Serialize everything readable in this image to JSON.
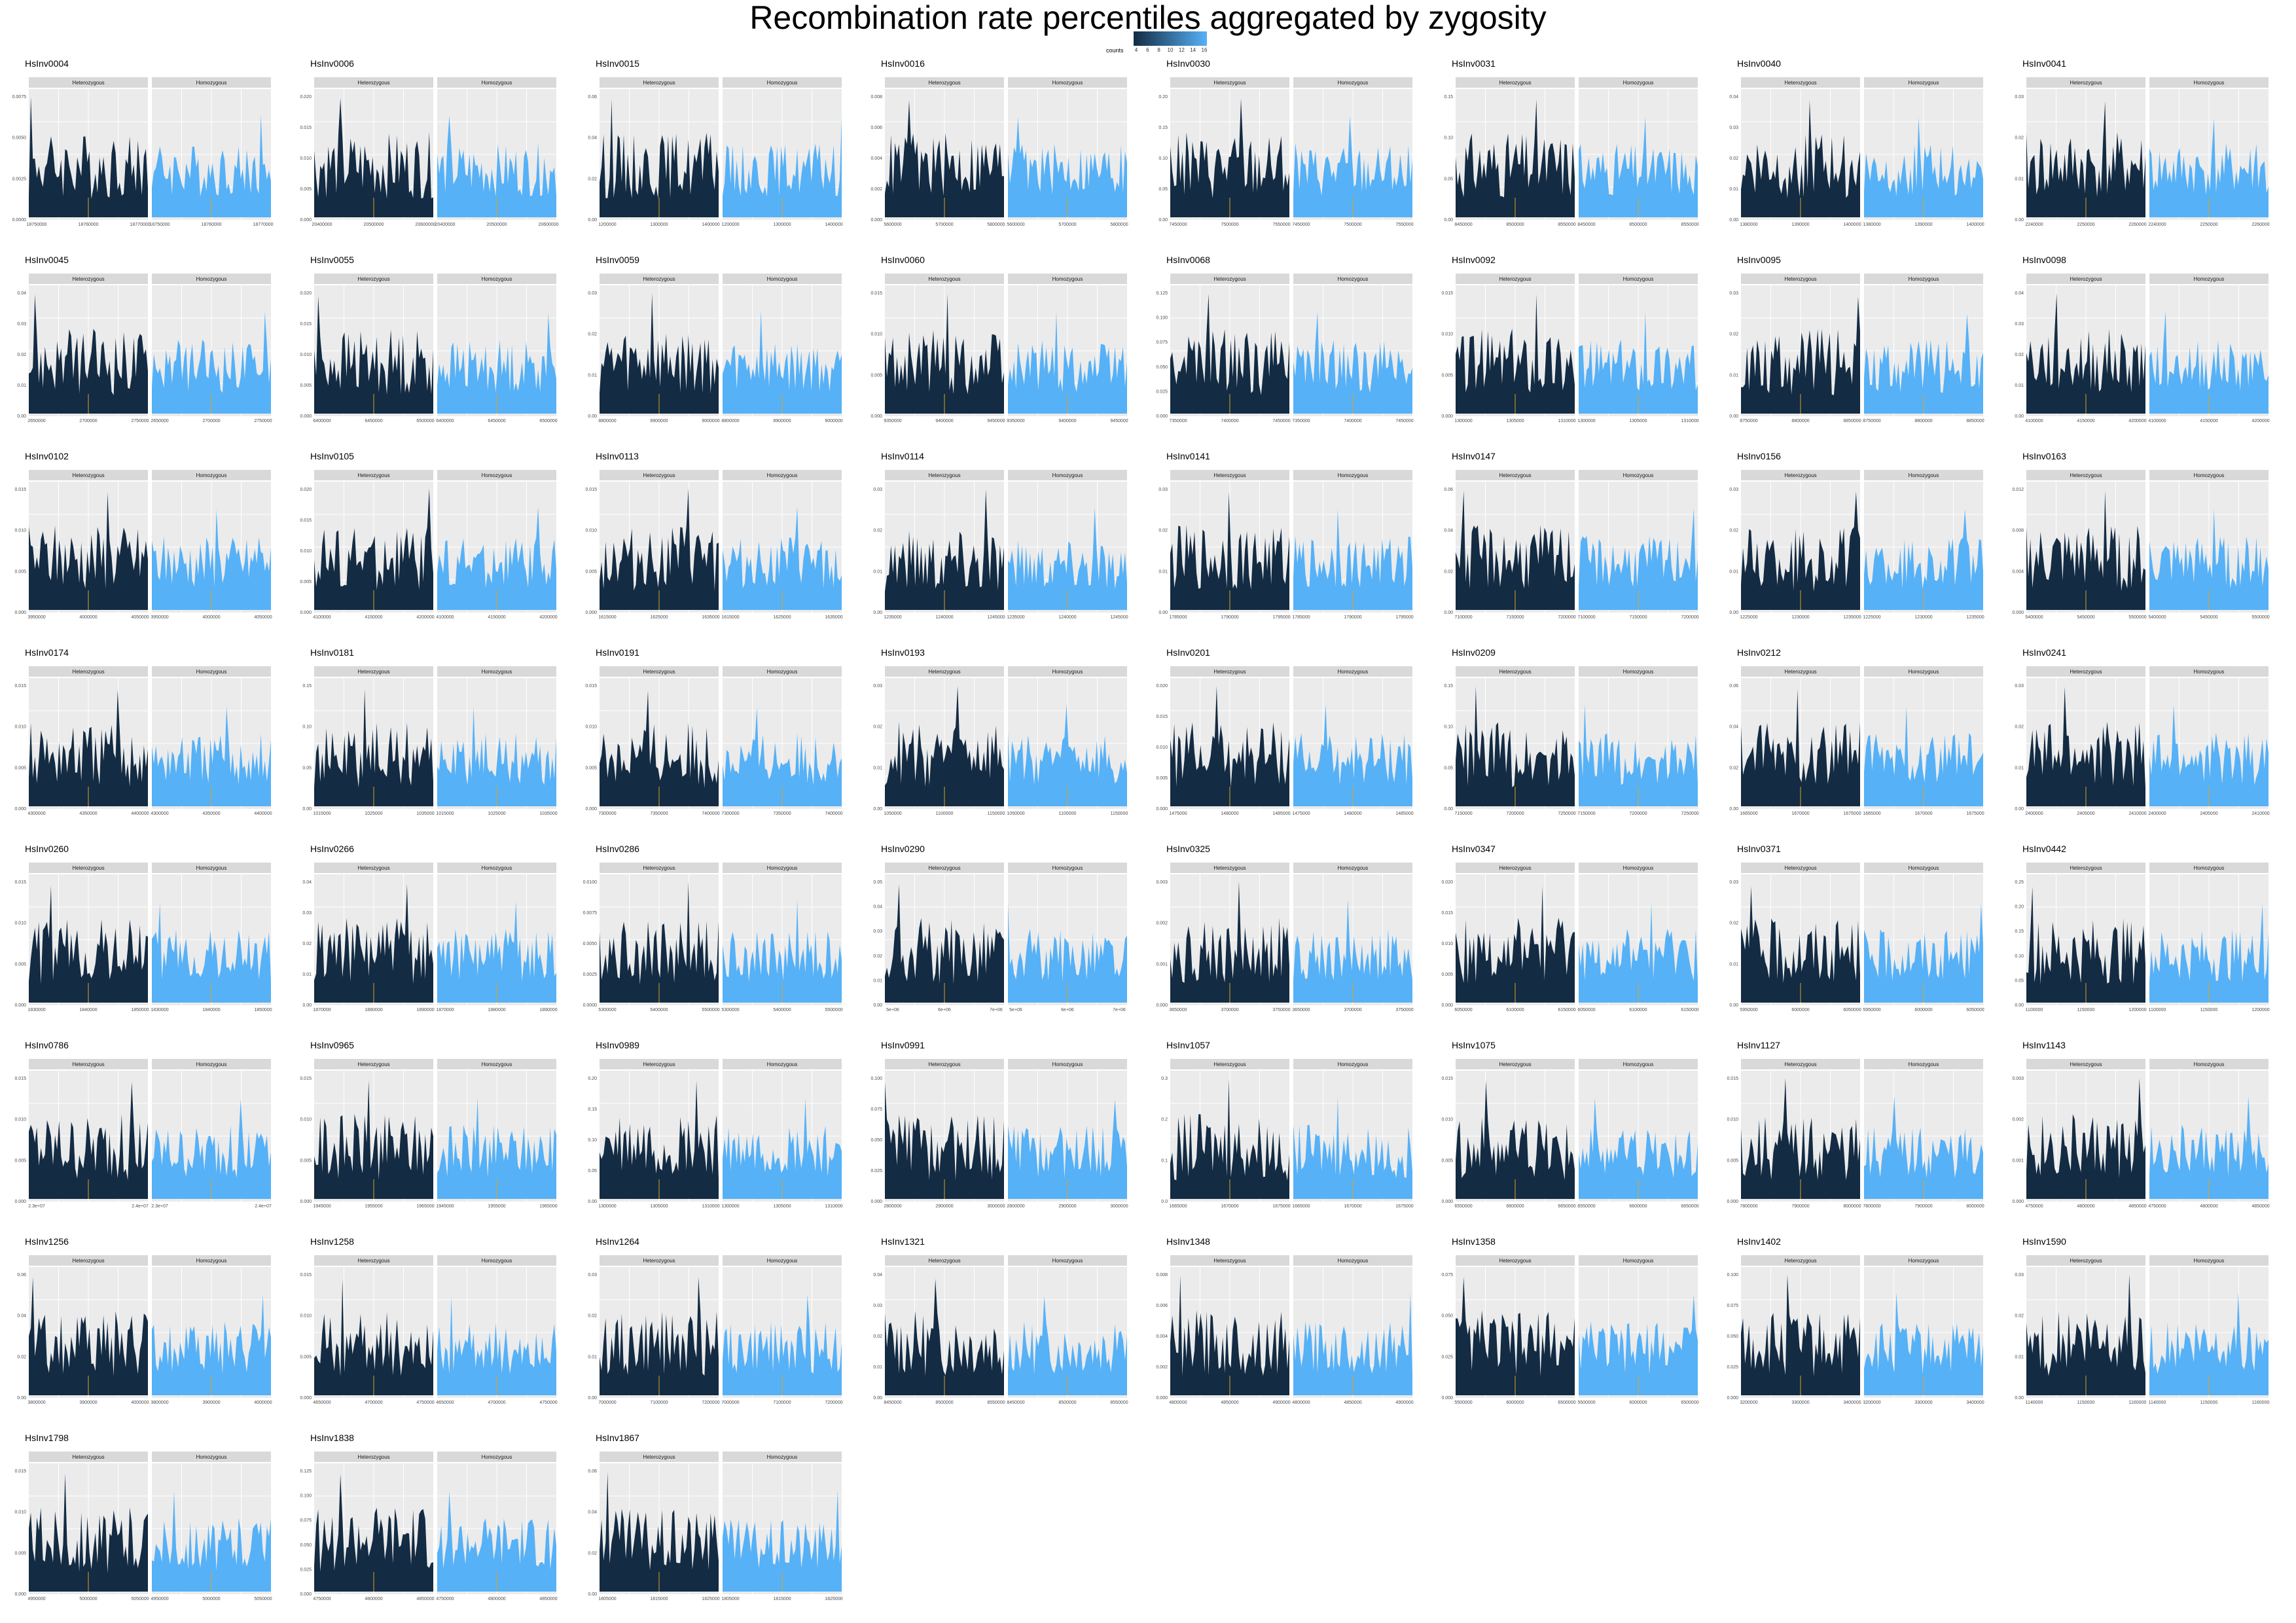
{
  "title": "Recombination rate percentiles aggregated by zygosity",
  "legend": {
    "title": "counts",
    "ticks": [
      "4",
      "6",
      "8",
      "10",
      "12",
      "14",
      "16"
    ],
    "low_color": "#132B43",
    "high_color": "#56B1F7",
    "position": "top-center"
  },
  "colors": {
    "heterozygous_fill": "#132B43",
    "homozygous_fill": "#56B1F7",
    "highlight": "#DAA520",
    "panel_bg": "#EBEBEB",
    "strip_bg": "#D9D9D9"
  },
  "chart_data": {
    "type": "area",
    "facets": [
      "Heterozygous",
      "Homozygous"
    ],
    "panels": [
      {
        "name": "HsInv0004",
        "yticks": [
          "0.0000",
          "0.0025",
          "0.0050",
          "0.0075"
        ],
        "xticks": [
          "18750000",
          "18760000",
          "18770000"
        ],
        "seed": 4
      },
      {
        "name": "HsInv0006",
        "yticks": [
          "0.000",
          "0.005",
          "0.010",
          "0.015",
          "0.020"
        ],
        "xticks": [
          "20400000",
          "20500000",
          "20600000"
        ],
        "seed": 6
      },
      {
        "name": "HsInv0015",
        "yticks": [
          "0.00",
          "0.02",
          "0.04",
          "0.06"
        ],
        "xticks": [
          "1200000",
          "1300000",
          "1400000"
        ],
        "seed": 15
      },
      {
        "name": "HsInv0016",
        "yticks": [
          "0.000",
          "0.002",
          "0.004",
          "0.006",
          "0.008"
        ],
        "xticks": [
          "5600000",
          "5700000",
          "5800000"
        ],
        "seed": 16
      },
      {
        "name": "HsInv0030",
        "yticks": [
          "0.00",
          "0.05",
          "0.10",
          "0.15",
          "0.20"
        ],
        "xticks": [
          "7450000",
          "7500000",
          "7550000"
        ],
        "seed": 30
      },
      {
        "name": "HsInv0031",
        "yticks": [
          "0.00",
          "0.05",
          "0.10",
          "0.15"
        ],
        "xticks": [
          "8450000",
          "8500000",
          "8550000"
        ],
        "seed": 31
      },
      {
        "name": "HsInv0040",
        "yticks": [
          "0.00",
          "0.01",
          "0.02",
          "0.03",
          "0.04"
        ],
        "xticks": [
          "1380000",
          "1390000",
          "1400000"
        ],
        "seed": 40
      },
      {
        "name": "HsInv0041",
        "yticks": [
          "0.00",
          "0.01",
          "0.02",
          "0.03"
        ],
        "xticks": [
          "2240000",
          "2250000",
          "2260000"
        ],
        "seed": 41
      },
      {
        "name": "HsInv0045",
        "yticks": [
          "0.00",
          "0.01",
          "0.02",
          "0.03",
          "0.04"
        ],
        "xticks": [
          "2650000",
          "2700000",
          "2750000"
        ],
        "seed": 45
      },
      {
        "name": "HsInv0055",
        "yticks": [
          "0.000",
          "0.005",
          "0.010",
          "0.015",
          "0.020"
        ],
        "xticks": [
          "6400000",
          "6450000",
          "6500000"
        ],
        "seed": 55
      },
      {
        "name": "HsInv0059",
        "yticks": [
          "0.00",
          "0.01",
          "0.02",
          "0.03"
        ],
        "xticks": [
          "8800000",
          "8900000",
          "9000000"
        ],
        "seed": 59
      },
      {
        "name": "HsInv0060",
        "yticks": [
          "0.000",
          "0.005",
          "0.010",
          "0.015"
        ],
        "xticks": [
          "9350000",
          "9400000",
          "9450000"
        ],
        "seed": 60
      },
      {
        "name": "HsInv0068",
        "yticks": [
          "0.000",
          "0.025",
          "0.050",
          "0.075",
          "0.100",
          "0.125"
        ],
        "xticks": [
          "7350000",
          "7400000",
          "7450000"
        ],
        "seed": 68
      },
      {
        "name": "HsInv0092",
        "yticks": [
          "0.000",
          "0.005",
          "0.010",
          "0.015"
        ],
        "xticks": [
          "1300000",
          "1305000",
          "1310000"
        ],
        "seed": 92
      },
      {
        "name": "HsInv0095",
        "yticks": [
          "0.00",
          "0.01",
          "0.02",
          "0.03"
        ],
        "xticks": [
          "8750000",
          "8800000",
          "8850000"
        ],
        "seed": 95
      },
      {
        "name": "HsInv0098",
        "yticks": [
          "0.00",
          "0.01",
          "0.02",
          "0.03",
          "0.04"
        ],
        "xticks": [
          "4100000",
          "4150000",
          "4200000"
        ],
        "seed": 98
      },
      {
        "name": "HsInv0102",
        "yticks": [
          "0.000",
          "0.005",
          "0.010",
          "0.015"
        ],
        "xticks": [
          "3950000",
          "4000000",
          "4050000"
        ],
        "seed": 102
      },
      {
        "name": "HsInv0105",
        "yticks": [
          "0.000",
          "0.005",
          "0.010",
          "0.015",
          "0.020"
        ],
        "xticks": [
          "4100000",
          "4150000",
          "4200000"
        ],
        "seed": 105
      },
      {
        "name": "HsInv0113",
        "yticks": [
          "0.000",
          "0.005",
          "0.010",
          "0.015"
        ],
        "xticks": [
          "1615000",
          "1625000",
          "1635000"
        ],
        "seed": 113
      },
      {
        "name": "HsInv0114",
        "yticks": [
          "0.00",
          "0.01",
          "0.02",
          "0.03"
        ],
        "xticks": [
          "1235000",
          "1240000",
          "1245000"
        ],
        "seed": 114
      },
      {
        "name": "HsInv0141",
        "yticks": [
          "0.00",
          "0.01",
          "0.02",
          "0.03"
        ],
        "xticks": [
          "1785000",
          "1790000",
          "1795000"
        ],
        "seed": 141
      },
      {
        "name": "HsInv0147",
        "yticks": [
          "0.00",
          "0.02",
          "0.04",
          "0.06"
        ],
        "xticks": [
          "7100000",
          "7150000",
          "7200000"
        ],
        "seed": 147
      },
      {
        "name": "HsInv0156",
        "yticks": [
          "0.00",
          "0.01",
          "0.02",
          "0.03"
        ],
        "xticks": [
          "1225000",
          "1230000",
          "1235000"
        ],
        "seed": 156
      },
      {
        "name": "HsInv0163",
        "yticks": [
          "0.000",
          "0.004",
          "0.008",
          "0.012"
        ],
        "xticks": [
          "5400000",
          "5450000",
          "5500000"
        ],
        "seed": 163
      },
      {
        "name": "HsInv0174",
        "yticks": [
          "0.000",
          "0.005",
          "0.010",
          "0.015"
        ],
        "xticks": [
          "4300000",
          "4350000",
          "4400000"
        ],
        "seed": 174
      },
      {
        "name": "HsInv0181",
        "yticks": [
          "0.00",
          "0.05",
          "0.10",
          "0.15"
        ],
        "xticks": [
          "1015000",
          "1025000",
          "1035000"
        ],
        "seed": 181
      },
      {
        "name": "HsInv0191",
        "yticks": [
          "0.000",
          "0.005",
          "0.010",
          "0.015"
        ],
        "xticks": [
          "7300000",
          "7350000",
          "7400000"
        ],
        "seed": 191
      },
      {
        "name": "HsInv0193",
        "yticks": [
          "0.00",
          "0.01",
          "0.02",
          "0.03"
        ],
        "xticks": [
          "1050000",
          "1100000",
          "1150000"
        ],
        "seed": 193
      },
      {
        "name": "HsInv0201",
        "yticks": [
          "0.000",
          "0.005",
          "0.010",
          "0.015",
          "0.020"
        ],
        "xticks": [
          "1475000",
          "1480000",
          "1485000"
        ],
        "seed": 201
      },
      {
        "name": "HsInv0209",
        "yticks": [
          "0.00",
          "0.05",
          "0.10",
          "0.15"
        ],
        "xticks": [
          "7150000",
          "7200000",
          "7250000"
        ],
        "seed": 209
      },
      {
        "name": "HsInv0212",
        "yticks": [
          "0.00",
          "0.02",
          "0.04",
          "0.06"
        ],
        "xticks": [
          "1665000",
          "1670000",
          "1675000"
        ],
        "seed": 212
      },
      {
        "name": "HsInv0241",
        "yticks": [
          "0.00",
          "0.01",
          "0.02",
          "0.03"
        ],
        "xticks": [
          "2400000",
          "2405000",
          "2410000"
        ],
        "seed": 241
      },
      {
        "name": "HsInv0260",
        "yticks": [
          "0.000",
          "0.005",
          "0.010",
          "0.015"
        ],
        "xticks": [
          "1830000",
          "1840000",
          "1850000"
        ],
        "seed": 260
      },
      {
        "name": "HsInv0266",
        "yticks": [
          "0.00",
          "0.01",
          "0.02",
          "0.03",
          "0.04"
        ],
        "xticks": [
          "1870000",
          "1880000",
          "1890000"
        ],
        "seed": 266
      },
      {
        "name": "HsInv0286",
        "yticks": [
          "0.0000",
          "0.0025",
          "0.0050",
          "0.0075",
          "0.0100"
        ],
        "xticks": [
          "5300000",
          "5400000",
          "5500000"
        ],
        "seed": 286
      },
      {
        "name": "HsInv0290",
        "yticks": [
          "0.00",
          "0.01",
          "0.02",
          "0.03",
          "0.04",
          "0.05"
        ],
        "xticks": [
          "5e+06",
          "6e+06",
          "7e+06"
        ],
        "seed": 290
      },
      {
        "name": "HsInv0325",
        "yticks": [
          "0.000",
          "0.001",
          "0.002",
          "0.003"
        ],
        "xticks": [
          "3650000",
          "3700000",
          "3750000"
        ],
        "seed": 325
      },
      {
        "name": "HsInv0347",
        "yticks": [
          "0.000",
          "0.005",
          "0.010",
          "0.015",
          "0.020"
        ],
        "xticks": [
          "6050000",
          "6100000",
          "6150000"
        ],
        "seed": 347
      },
      {
        "name": "HsInv0371",
        "yticks": [
          "0.00",
          "0.01",
          "0.02",
          "0.03"
        ],
        "xticks": [
          "5950000",
          "6000000",
          "6050000"
        ],
        "seed": 371
      },
      {
        "name": "HsInv0442",
        "yticks": [
          "0.00",
          "0.05",
          "0.10",
          "0.15",
          "0.20",
          "0.25"
        ],
        "xticks": [
          "1100000",
          "1150000",
          "1200000"
        ],
        "seed": 442
      },
      {
        "name": "HsInv0786",
        "yticks": [
          "0.000",
          "0.005",
          "0.010",
          "0.015"
        ],
        "xticks": [
          "2.3e+07",
          "2.4e+07"
        ],
        "seed": 786
      },
      {
        "name": "HsInv0965",
        "yticks": [
          "0.000",
          "0.005",
          "0.010",
          "0.015"
        ],
        "xticks": [
          "1945000",
          "1955000",
          "1965000"
        ],
        "seed": 965
      },
      {
        "name": "HsInv0989",
        "yticks": [
          "0.00",
          "0.05",
          "0.10",
          "0.15",
          "0.20"
        ],
        "xticks": [
          "1300000",
          "1305000",
          "1310000"
        ],
        "seed": 989
      },
      {
        "name": "HsInv0991",
        "yticks": [
          "0.000",
          "0.025",
          "0.050",
          "0.075",
          "0.100"
        ],
        "xticks": [
          "2800000",
          "2900000",
          "3000000"
        ],
        "seed": 991
      },
      {
        "name": "HsInv1057",
        "yticks": [
          "0.0",
          "0.1",
          "0.2",
          "0.3"
        ],
        "xticks": [
          "1665000",
          "1670000",
          "1675000"
        ],
        "seed": 1057
      },
      {
        "name": "HsInv1075",
        "yticks": [
          "0.000",
          "0.005",
          "0.010",
          "0.015"
        ],
        "xticks": [
          "6550000",
          "6600000",
          "6650000"
        ],
        "seed": 1075
      },
      {
        "name": "HsInv1127",
        "yticks": [
          "0.000",
          "0.005",
          "0.010",
          "0.015"
        ],
        "xticks": [
          "7800000",
          "7900000",
          "8000000"
        ],
        "seed": 1127
      },
      {
        "name": "HsInv1143",
        "yticks": [
          "0.000",
          "0.001",
          "0.002",
          "0.003"
        ],
        "xticks": [
          "4750000",
          "4800000",
          "4850000"
        ],
        "seed": 1143
      },
      {
        "name": "HsInv1256",
        "yticks": [
          "0.00",
          "0.02",
          "0.04",
          "0.06"
        ],
        "xticks": [
          "3800000",
          "3900000",
          "4000000"
        ],
        "seed": 1256
      },
      {
        "name": "HsInv1258",
        "yticks": [
          "0.000",
          "0.005",
          "0.010",
          "0.015"
        ],
        "xticks": [
          "4650000",
          "4700000",
          "4750000"
        ],
        "seed": 1258
      },
      {
        "name": "HsInv1264",
        "yticks": [
          "0.00",
          "0.01",
          "0.02",
          "0.03"
        ],
        "xticks": [
          "7000000",
          "7100000",
          "7200000"
        ],
        "seed": 1264
      },
      {
        "name": "HsInv1321",
        "yticks": [
          "0.00",
          "0.01",
          "0.02",
          "0.03",
          "0.04"
        ],
        "xticks": [
          "8450000",
          "8500000",
          "8550000"
        ],
        "seed": 1321
      },
      {
        "name": "HsInv1348",
        "yticks": [
          "0.000",
          "0.002",
          "0.004",
          "0.006",
          "0.008"
        ],
        "xticks": [
          "4800000",
          "4850000",
          "4900000"
        ],
        "seed": 1348
      },
      {
        "name": "HsInv1358",
        "yticks": [
          "0.000",
          "0.025",
          "0.050",
          "0.075"
        ],
        "xticks": [
          "5500000",
          "6000000",
          "6500000"
        ],
        "seed": 1358
      },
      {
        "name": "HsInv1402",
        "yticks": [
          "0.000",
          "0.025",
          "0.050",
          "0.075",
          "0.100"
        ],
        "xticks": [
          "3200000",
          "3300000",
          "3400000"
        ],
        "seed": 1402
      },
      {
        "name": "HsInv1590",
        "yticks": [
          "0.00",
          "0.01",
          "0.02",
          "0.03"
        ],
        "xticks": [
          "1140000",
          "1150000",
          "1160000"
        ],
        "seed": 1590
      },
      {
        "name": "HsInv1798",
        "yticks": [
          "0.000",
          "0.005",
          "0.010",
          "0.015"
        ],
        "xticks": [
          "4950000",
          "5000000",
          "5050000"
        ],
        "seed": 1798
      },
      {
        "name": "HsInv1838",
        "yticks": [
          "0.000",
          "0.025",
          "0.050",
          "0.075",
          "0.100",
          "0.125"
        ],
        "xticks": [
          "4750000",
          "4800000",
          "4850000"
        ],
        "seed": 1838
      },
      {
        "name": "HsInv1867",
        "yticks": [
          "0.00",
          "0.02",
          "0.04",
          "0.06"
        ],
        "xticks": [
          "1805000",
          "1815000",
          "1825000"
        ],
        "seed": 1867
      }
    ]
  }
}
